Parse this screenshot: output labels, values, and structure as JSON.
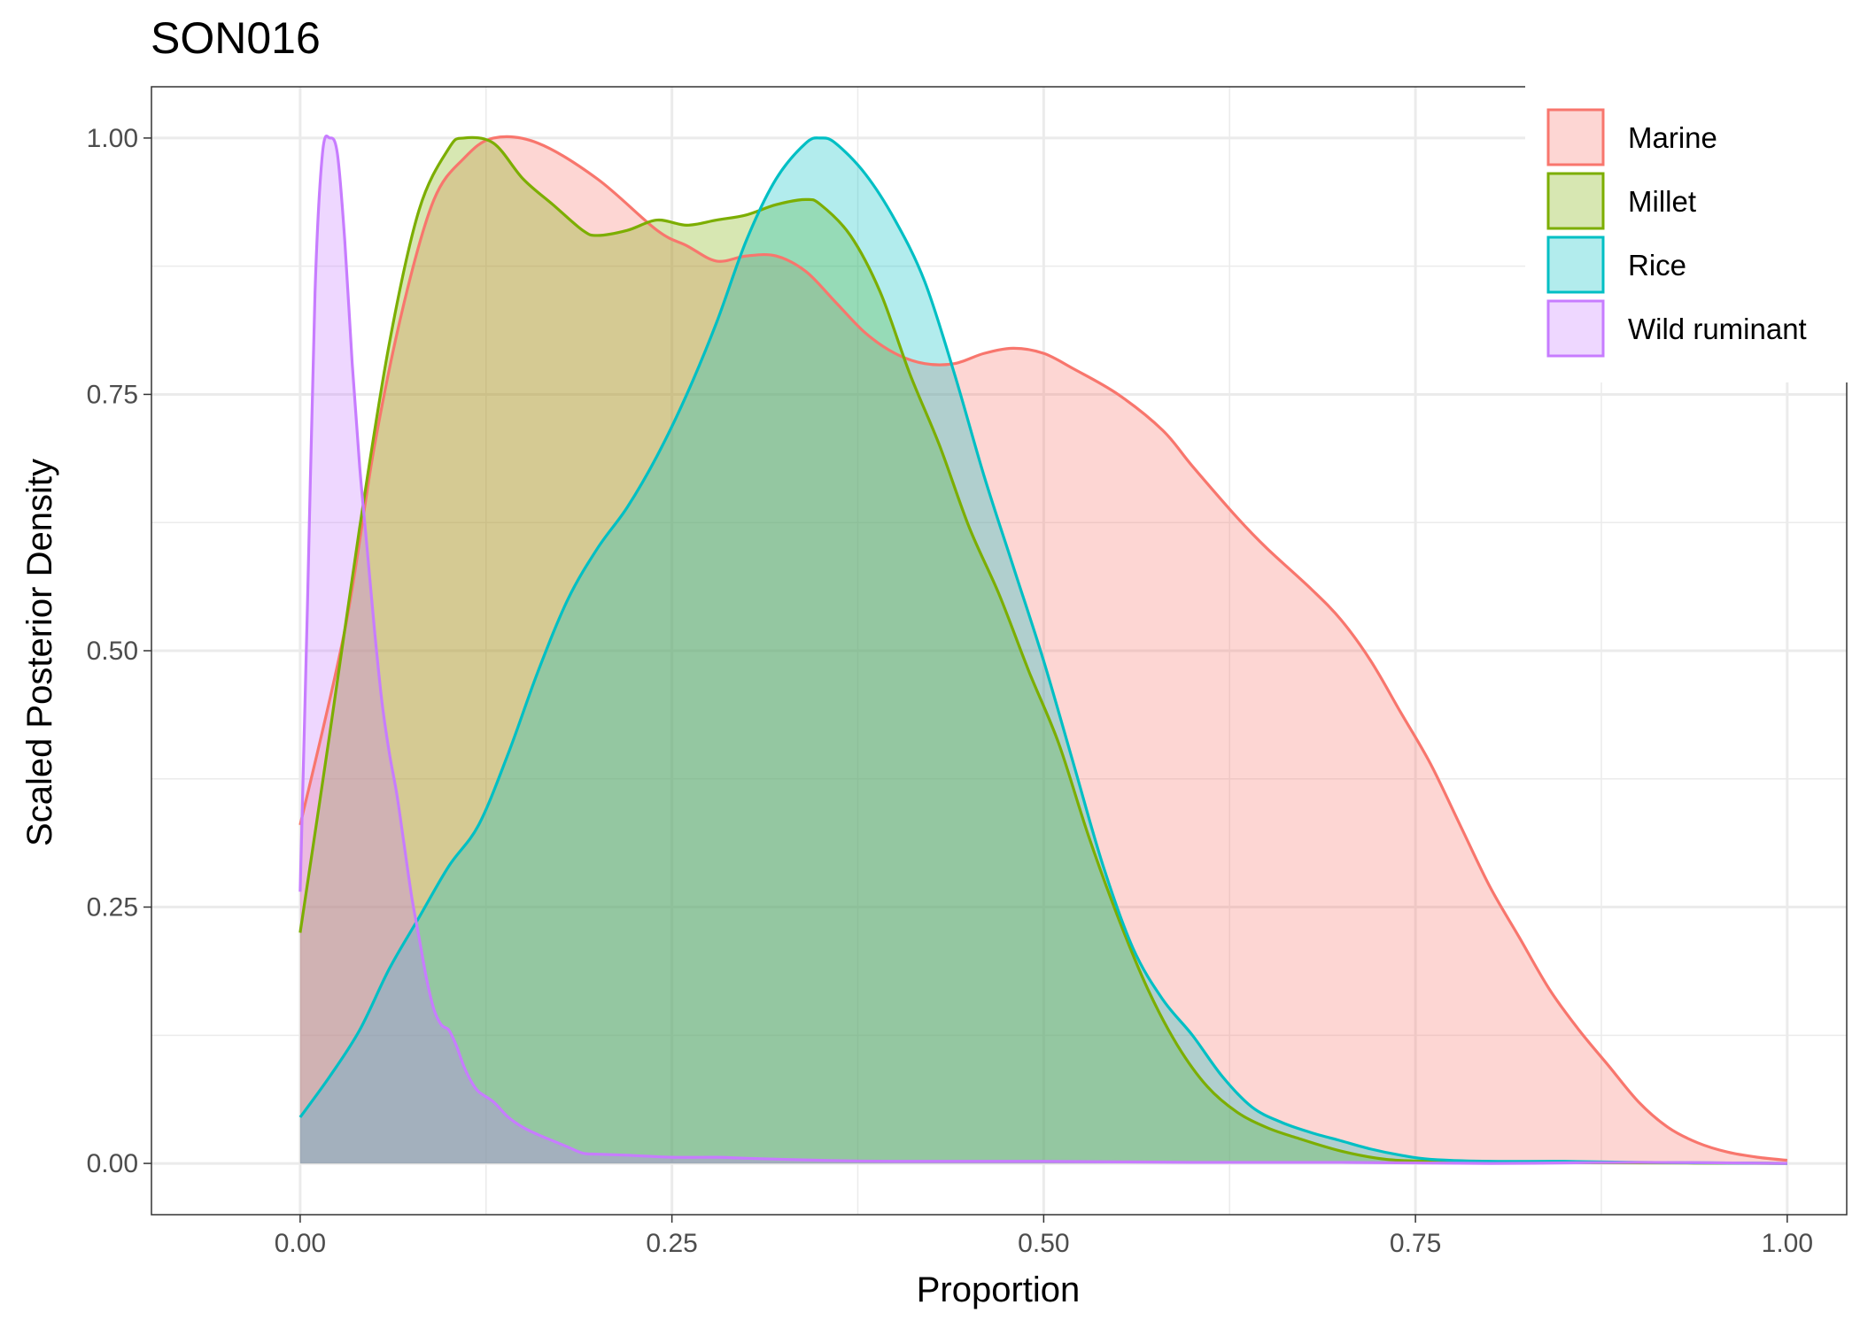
{
  "chart_data": {
    "type": "area",
    "title": "SON016",
    "xlabel": "Proportion",
    "ylabel": "Scaled Posterior Density",
    "xlim": [
      -0.1,
      1.04
    ],
    "ylim": [
      -0.05,
      1.05
    ],
    "x_ticks": [
      0,
      0.25,
      0.5,
      0.75,
      1
    ],
    "x_tick_labels": [
      "0.00",
      "0.25",
      "0.50",
      "0.75",
      "1.00"
    ],
    "y_ticks": [
      0,
      0.25,
      0.5,
      0.75,
      1
    ],
    "y_tick_labels": [
      "0.00",
      "0.25",
      "0.50",
      "0.75",
      "1.00"
    ],
    "grid": true,
    "legend_position": "top-right",
    "series": [
      {
        "name": "Marine",
        "color": "#f8766d",
        "points": [
          [
            0,
            0.33
          ],
          [
            0.03,
            0.52
          ],
          [
            0.05,
            0.7
          ],
          [
            0.07,
            0.84
          ],
          [
            0.09,
            0.94
          ],
          [
            0.11,
            0.98
          ],
          [
            0.13,
            1.0
          ],
          [
            0.16,
            0.995
          ],
          [
            0.2,
            0.96
          ],
          [
            0.24,
            0.91
          ],
          [
            0.26,
            0.895
          ],
          [
            0.28,
            0.88
          ],
          [
            0.3,
            0.885
          ],
          [
            0.32,
            0.885
          ],
          [
            0.34,
            0.87
          ],
          [
            0.36,
            0.84
          ],
          [
            0.38,
            0.81
          ],
          [
            0.4,
            0.79
          ],
          [
            0.42,
            0.78
          ],
          [
            0.44,
            0.78
          ],
          [
            0.46,
            0.79
          ],
          [
            0.48,
            0.795
          ],
          [
            0.5,
            0.79
          ],
          [
            0.52,
            0.775
          ],
          [
            0.55,
            0.75
          ],
          [
            0.58,
            0.715
          ],
          [
            0.6,
            0.68
          ],
          [
            0.63,
            0.63
          ],
          [
            0.65,
            0.6
          ],
          [
            0.68,
            0.56
          ],
          [
            0.7,
            0.53
          ],
          [
            0.72,
            0.49
          ],
          [
            0.74,
            0.44
          ],
          [
            0.76,
            0.39
          ],
          [
            0.78,
            0.33
          ],
          [
            0.8,
            0.27
          ],
          [
            0.82,
            0.22
          ],
          [
            0.84,
            0.17
          ],
          [
            0.86,
            0.13
          ],
          [
            0.88,
            0.095
          ],
          [
            0.9,
            0.06
          ],
          [
            0.92,
            0.035
          ],
          [
            0.94,
            0.02
          ],
          [
            0.96,
            0.011
          ],
          [
            0.98,
            0.006
          ],
          [
            1.0,
            0.003
          ]
        ]
      },
      {
        "name": "Millet",
        "color": "#7cae00",
        "points": [
          [
            0,
            0.225
          ],
          [
            0.02,
            0.42
          ],
          [
            0.04,
            0.62
          ],
          [
            0.06,
            0.8
          ],
          [
            0.08,
            0.93
          ],
          [
            0.1,
            0.99
          ],
          [
            0.11,
            1.0
          ],
          [
            0.13,
            0.995
          ],
          [
            0.15,
            0.96
          ],
          [
            0.17,
            0.935
          ],
          [
            0.19,
            0.91
          ],
          [
            0.2,
            0.905
          ],
          [
            0.22,
            0.91
          ],
          [
            0.24,
            0.92
          ],
          [
            0.26,
            0.915
          ],
          [
            0.28,
            0.92
          ],
          [
            0.3,
            0.925
          ],
          [
            0.32,
            0.935
          ],
          [
            0.34,
            0.94
          ],
          [
            0.35,
            0.935
          ],
          [
            0.37,
            0.905
          ],
          [
            0.39,
            0.85
          ],
          [
            0.41,
            0.77
          ],
          [
            0.43,
            0.7
          ],
          [
            0.45,
            0.62
          ],
          [
            0.47,
            0.555
          ],
          [
            0.49,
            0.48
          ],
          [
            0.51,
            0.41
          ],
          [
            0.53,
            0.32
          ],
          [
            0.55,
            0.24
          ],
          [
            0.57,
            0.17
          ],
          [
            0.59,
            0.115
          ],
          [
            0.61,
            0.075
          ],
          [
            0.63,
            0.05
          ],
          [
            0.65,
            0.035
          ],
          [
            0.67,
            0.025
          ],
          [
            0.7,
            0.012
          ],
          [
            0.73,
            0.004
          ],
          [
            0.76,
            0.002
          ],
          [
            0.8,
            0.001
          ],
          [
            0.9,
            0.0005
          ],
          [
            1.0,
            0.0
          ]
        ]
      },
      {
        "name": "Rice",
        "color": "#00bfc4",
        "points": [
          [
            0,
            0.045
          ],
          [
            0.02,
            0.085
          ],
          [
            0.04,
            0.13
          ],
          [
            0.06,
            0.19
          ],
          [
            0.08,
            0.24
          ],
          [
            0.1,
            0.29
          ],
          [
            0.12,
            0.33
          ],
          [
            0.14,
            0.4
          ],
          [
            0.16,
            0.48
          ],
          [
            0.18,
            0.55
          ],
          [
            0.2,
            0.6
          ],
          [
            0.22,
            0.64
          ],
          [
            0.24,
            0.69
          ],
          [
            0.26,
            0.75
          ],
          [
            0.28,
            0.82
          ],
          [
            0.3,
            0.9
          ],
          [
            0.32,
            0.96
          ],
          [
            0.34,
            0.995
          ],
          [
            0.35,
            1.0
          ],
          [
            0.36,
            0.995
          ],
          [
            0.38,
            0.965
          ],
          [
            0.4,
            0.92
          ],
          [
            0.42,
            0.86
          ],
          [
            0.44,
            0.77
          ],
          [
            0.46,
            0.67
          ],
          [
            0.48,
            0.58
          ],
          [
            0.5,
            0.49
          ],
          [
            0.52,
            0.39
          ],
          [
            0.54,
            0.29
          ],
          [
            0.56,
            0.21
          ],
          [
            0.58,
            0.16
          ],
          [
            0.6,
            0.125
          ],
          [
            0.62,
            0.085
          ],
          [
            0.64,
            0.055
          ],
          [
            0.66,
            0.04
          ],
          [
            0.68,
            0.03
          ],
          [
            0.7,
            0.022
          ],
          [
            0.72,
            0.014
          ],
          [
            0.74,
            0.008
          ],
          [
            0.76,
            0.004
          ],
          [
            0.8,
            0.002
          ],
          [
            0.85,
            0.002
          ],
          [
            0.9,
            0.001
          ],
          [
            0.95,
            0.0005
          ],
          [
            1.0,
            0.0
          ]
        ]
      },
      {
        "name": "Wild ruminant",
        "color": "#c77cff",
        "points": [
          [
            0,
            0.265
          ],
          [
            0.005,
            0.55
          ],
          [
            0.01,
            0.85
          ],
          [
            0.015,
            0.985
          ],
          [
            0.02,
            1.0
          ],
          [
            0.025,
            0.985
          ],
          [
            0.03,
            0.9
          ],
          [
            0.035,
            0.78
          ],
          [
            0.04,
            0.68
          ],
          [
            0.045,
            0.6
          ],
          [
            0.05,
            0.52
          ],
          [
            0.055,
            0.45
          ],
          [
            0.06,
            0.4
          ],
          [
            0.065,
            0.36
          ],
          [
            0.07,
            0.31
          ],
          [
            0.075,
            0.26
          ],
          [
            0.08,
            0.22
          ],
          [
            0.085,
            0.18
          ],
          [
            0.09,
            0.15
          ],
          [
            0.095,
            0.135
          ],
          [
            0.1,
            0.13
          ],
          [
            0.105,
            0.115
          ],
          [
            0.11,
            0.095
          ],
          [
            0.115,
            0.08
          ],
          [
            0.12,
            0.07
          ],
          [
            0.13,
            0.06
          ],
          [
            0.14,
            0.045
          ],
          [
            0.15,
            0.035
          ],
          [
            0.16,
            0.028
          ],
          [
            0.17,
            0.022
          ],
          [
            0.18,
            0.016
          ],
          [
            0.19,
            0.01
          ],
          [
            0.2,
            0.009
          ],
          [
            0.22,
            0.008
          ],
          [
            0.25,
            0.006
          ],
          [
            0.28,
            0.006
          ],
          [
            0.3,
            0.005
          ],
          [
            0.35,
            0.003
          ],
          [
            0.4,
            0.002
          ],
          [
            0.5,
            0.002
          ],
          [
            0.6,
            0.001
          ],
          [
            0.7,
            0.001
          ],
          [
            0.8,
            0.0
          ],
          [
            0.9,
            0.001
          ],
          [
            1.0,
            0.0
          ]
        ]
      }
    ]
  }
}
